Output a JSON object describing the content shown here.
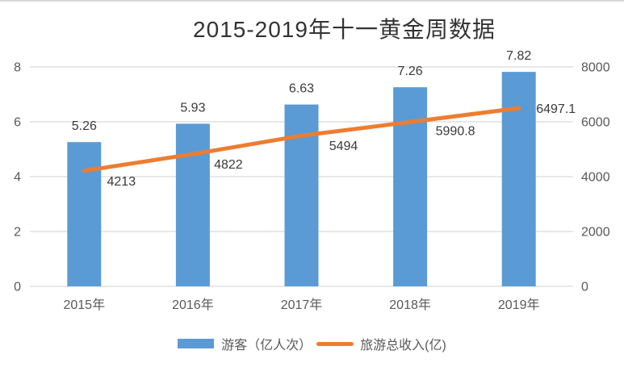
{
  "title": "2015-2019年十一黄金周数据",
  "colors": {
    "bar": "#5B9BD5",
    "line": "#ED7D31",
    "gridline": "#D9D9D9",
    "axis_text": "#595959",
    "data_label_text": "#3A3A3A",
    "title_text": "#333333",
    "background": "#FFFFFF",
    "top_border": "#D8D8D8"
  },
  "chart_data": {
    "type": "combo-bar-line",
    "title": "2015-2019年十一黄金周数据",
    "categories": [
      "2015年",
      "2016年",
      "2017年",
      "2018年",
      "2019年"
    ],
    "series": [
      {
        "name": "游客（亿人次）",
        "type": "bar",
        "y_axis": "left",
        "color_key": "bar",
        "values": [
          5.26,
          5.93,
          6.63,
          7.26,
          7.82
        ],
        "data_labels": [
          "5.26",
          "5.93",
          "6.63",
          "7.26",
          "7.82"
        ]
      },
      {
        "name": "旅游总收入(亿)",
        "type": "line",
        "y_axis": "right",
        "color_key": "line",
        "values": [
          4213,
          4822,
          5494,
          5990.8,
          6497.1
        ],
        "data_labels": [
          "4213",
          "4822",
          "5494",
          "5990.8",
          "6497.1"
        ]
      }
    ],
    "left_axis": {
      "min": 0,
      "max": 8,
      "ticks": [
        "0",
        "2",
        "4",
        "6",
        "8"
      ]
    },
    "right_axis": {
      "min": 0,
      "max": 8000,
      "ticks": [
        "0",
        "2000",
        "4000",
        "6000",
        "8000"
      ]
    },
    "grid": true,
    "legend_position": "bottom"
  },
  "legend": {
    "items": [
      {
        "label": "游客（亿人次）",
        "swatch": "bar-swatch"
      },
      {
        "label": "旅游总收入(亿)",
        "swatch": "line-swatch"
      }
    ]
  }
}
